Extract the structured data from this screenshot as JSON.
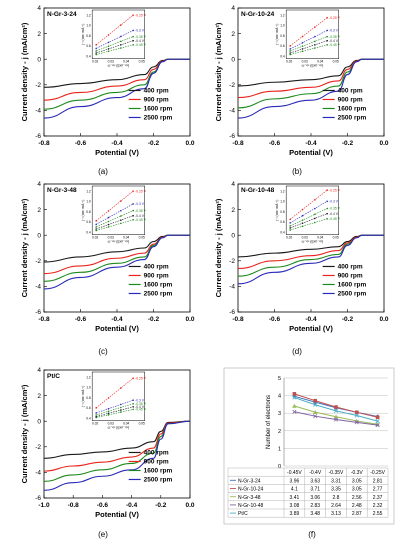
{
  "chart_data": [
    {
      "panel": "a",
      "type": "line",
      "sample_label": "N-Gr-3-24",
      "xlabel": "Potential (V)",
      "ylabel": "Current density - j (mA/cm²)",
      "xlim": [
        -0.8,
        0.0
      ],
      "ylim": [
        -6,
        4
      ],
      "xticks": [
        "-0.8",
        "-0.6",
        "-0.4",
        "-0.2",
        "0.0"
      ],
      "yticks": [
        "4",
        "2",
        "0",
        "-2",
        "-4",
        "-6"
      ],
      "legend": [
        "400   rpm",
        "900   rpm",
        "1600  rpm",
        "2500 rpm"
      ],
      "series": [
        {
          "name": "400   rpm",
          "x": [
            -0.8,
            -0.6,
            -0.4,
            -0.25,
            -0.2,
            -0.15,
            -0.12,
            0.0
          ],
          "y": [
            -2.2,
            -1.9,
            -1.6,
            -1.2,
            -0.6,
            -0.1,
            0.0,
            0.0
          ]
        },
        {
          "name": "900   rpm",
          "x": [
            -0.8,
            -0.6,
            -0.4,
            -0.25,
            -0.2,
            -0.15,
            -0.12,
            0.0
          ],
          "y": [
            -3.2,
            -2.6,
            -2.1,
            -1.6,
            -0.8,
            -0.15,
            0.0,
            0.0
          ]
        },
        {
          "name": "1600  rpm",
          "x": [
            -0.8,
            -0.6,
            -0.4,
            -0.25,
            -0.2,
            -0.15,
            -0.12,
            0.0
          ],
          "y": [
            -3.9,
            -3.2,
            -2.6,
            -2.0,
            -1.0,
            -0.2,
            0.0,
            0.0
          ]
        },
        {
          "name": "2500 rpm",
          "x": [
            -0.8,
            -0.6,
            -0.4,
            -0.25,
            -0.2,
            -0.15,
            -0.12,
            0.0
          ],
          "y": [
            -4.6,
            -3.7,
            -3.0,
            -2.3,
            -1.1,
            -0.2,
            0.0,
            0.0
          ]
        }
      ],
      "inset": {
        "xlabel": "ω⁻¹/² (rpm⁻¹/²)",
        "ylabel": "j⁻¹ (cm² mA⁻¹)",
        "xticks": [
          "0.02",
          "0.03",
          "0.04",
          "0.05"
        ],
        "yticks": [
          "0.4",
          "0.6",
          "0.8",
          "1.0",
          "1.2"
        ],
        "series": [
          {
            "name": "-0.25 V",
            "y": [
              0.62,
              1.2
            ]
          },
          {
            "name": "-0.3 V",
            "y": [
              0.55,
              0.9
            ]
          },
          {
            "name": "-0.35 V",
            "y": [
              0.5,
              0.78
            ]
          },
          {
            "name": "-0.4 V",
            "y": [
              0.46,
              0.7
            ]
          },
          {
            "name": "-0.45 V",
            "y": [
              0.43,
              0.62
            ]
          }
        ]
      },
      "caption": "(a)"
    },
    {
      "panel": "b",
      "type": "line",
      "sample_label": "N-Gr-10-24",
      "xlabel": "Potential (V)",
      "ylabel": "Current density - j (mA/cm²)",
      "xlim": [
        -0.8,
        0.0
      ],
      "ylim": [
        -6,
        4
      ],
      "xticks": [
        "-0.8",
        "-0.6",
        "-0.4",
        "-0.2",
        "0.0"
      ],
      "yticks": [
        "4",
        "2",
        "0",
        "-2",
        "-4",
        "-6"
      ],
      "legend": [
        "400   rpm",
        "900   rpm",
        "1600  rpm",
        "2500 rpm"
      ],
      "series": [
        {
          "name": "400   rpm",
          "x": [
            -0.8,
            -0.6,
            -0.4,
            -0.25,
            -0.2,
            -0.15,
            -0.12,
            0.0
          ],
          "y": [
            -2.1,
            -1.8,
            -1.6,
            -1.3,
            -0.6,
            -0.1,
            0.0,
            0.0
          ]
        },
        {
          "name": "900   rpm",
          "x": [
            -0.8,
            -0.6,
            -0.4,
            -0.25,
            -0.2,
            -0.15,
            -0.12,
            0.0
          ],
          "y": [
            -3.0,
            -2.5,
            -2.2,
            -1.7,
            -0.8,
            -0.15,
            0.0,
            0.0
          ]
        },
        {
          "name": "1600  rpm",
          "x": [
            -0.8,
            -0.6,
            -0.4,
            -0.25,
            -0.2,
            -0.15,
            -0.12,
            0.0
          ],
          "y": [
            -3.8,
            -3.1,
            -2.7,
            -2.1,
            -1.0,
            -0.2,
            0.0,
            0.0
          ]
        },
        {
          "name": "2500 rpm",
          "x": [
            -0.8,
            -0.6,
            -0.4,
            -0.25,
            -0.2,
            -0.15,
            -0.12,
            0.0
          ],
          "y": [
            -4.6,
            -3.7,
            -3.2,
            -2.5,
            -1.2,
            -0.2,
            0.0,
            0.0
          ]
        }
      ],
      "inset": {
        "xlabel": "ω⁻¹/² (rpm⁻¹/²)",
        "ylabel": "j⁻¹ (cm² mA⁻¹)",
        "xticks": [
          "0.02",
          "0.03",
          "0.04",
          "0.05"
        ],
        "yticks": [
          "0.4",
          "0.6",
          "0.8",
          "1.0",
          "1.2"
        ],
        "series": [
          {
            "name": "-0.25 V",
            "y": [
              0.6,
              1.15
            ]
          },
          {
            "name": "-0.3 V",
            "y": [
              0.54,
              0.9
            ]
          },
          {
            "name": "-0.35 V",
            "y": [
              0.5,
              0.78
            ]
          },
          {
            "name": "-0.4 V",
            "y": [
              0.46,
              0.7
            ]
          },
          {
            "name": "-0.45 V",
            "y": [
              0.43,
              0.62
            ]
          }
        ]
      },
      "caption": "(b)"
    },
    {
      "panel": "c",
      "type": "line",
      "sample_label": "N-Gr-3-48",
      "xlabel": "Potential (V)",
      "ylabel": "Current density - j (mA/cm²)",
      "xlim": [
        -0.8,
        0.0
      ],
      "ylim": [
        -6,
        4
      ],
      "xticks": [
        "-0.8",
        "-0.6",
        "-0.4",
        "-0.2",
        "0.0"
      ],
      "yticks": [
        "4",
        "2",
        "0",
        "-2",
        "-4",
        "-6"
      ],
      "legend": [
        "400   rpm",
        "900   rpm",
        "1600  rpm",
        "2500 rpm"
      ],
      "series": [
        {
          "name": "400   rpm",
          "x": [
            -0.8,
            -0.6,
            -0.4,
            -0.25,
            -0.2,
            -0.15,
            -0.12,
            0.0
          ],
          "y": [
            -2.1,
            -1.7,
            -1.3,
            -1.0,
            -0.5,
            -0.1,
            0.0,
            0.0
          ]
        },
        {
          "name": "900   rpm",
          "x": [
            -0.8,
            -0.6,
            -0.4,
            -0.25,
            -0.2,
            -0.15,
            -0.12,
            0.0
          ],
          "y": [
            -3.0,
            -2.4,
            -1.8,
            -1.4,
            -0.7,
            -0.15,
            0.0,
            0.0
          ]
        },
        {
          "name": "1600  rpm",
          "x": [
            -0.8,
            -0.6,
            -0.4,
            -0.25,
            -0.2,
            -0.15,
            -0.12,
            0.0
          ],
          "y": [
            -3.6,
            -2.9,
            -2.2,
            -1.7,
            -0.8,
            -0.2,
            0.0,
            0.0
          ]
        },
        {
          "name": "2500 rpm",
          "x": [
            -0.8,
            -0.6,
            -0.4,
            -0.25,
            -0.2,
            -0.15,
            -0.12,
            0.0
          ],
          "y": [
            -4.2,
            -3.3,
            -2.5,
            -1.9,
            -0.9,
            -0.2,
            0.0,
            0.0
          ]
        }
      ],
      "inset": {
        "xlabel": "ω⁻¹/² (rpm⁻¹/²)",
        "ylabel": "j⁻¹ (cm² mA⁻¹)",
        "xticks": [
          "0.02",
          "0.03",
          "0.04",
          "0.05"
        ],
        "yticks": [
          "0.4",
          "0.6",
          "0.8",
          "1.0",
          "1.2"
        ],
        "series": [
          {
            "name": "-0.25 V",
            "y": [
              0.62,
              1.2
            ]
          },
          {
            "name": "-0.3 V",
            "y": [
              0.55,
              0.95
            ]
          },
          {
            "name": "-0.35 V",
            "y": [
              0.5,
              0.82
            ]
          },
          {
            "name": "-0.4 V",
            "y": [
              0.46,
              0.72
            ]
          },
          {
            "name": "-0.45 V",
            "y": [
              0.43,
              0.64
            ]
          }
        ]
      },
      "caption": "(c)"
    },
    {
      "panel": "d",
      "type": "line",
      "sample_label": "N-Gr-10-48",
      "xlabel": "Potential (V)",
      "ylabel": "Current density - j (mA/cm²)",
      "xlim": [
        -0.8,
        0.0
      ],
      "ylim": [
        -6,
        4
      ],
      "xticks": [
        "-0.8",
        "-0.6",
        "-0.4",
        "-0.2",
        "0.0"
      ],
      "yticks": [
        "4",
        "2",
        "0",
        "-2",
        "-4",
        "-6"
      ],
      "legend": [
        "400   rpm",
        "900   rpm",
        "1600  rpm",
        "2500 rpm"
      ],
      "series": [
        {
          "name": "400   rpm",
          "x": [
            -0.8,
            -0.6,
            -0.4,
            -0.25,
            -0.2,
            -0.15,
            -0.12,
            0.0
          ],
          "y": [
            -1.7,
            -1.4,
            -1.1,
            -0.9,
            -0.5,
            -0.1,
            0.0,
            0.0
          ]
        },
        {
          "name": "900   rpm",
          "x": [
            -0.8,
            -0.6,
            -0.4,
            -0.25,
            -0.2,
            -0.15,
            -0.12,
            0.0
          ],
          "y": [
            -2.6,
            -2.0,
            -1.6,
            -1.2,
            -0.6,
            -0.15,
            0.0,
            0.0
          ]
        },
        {
          "name": "1600  rpm",
          "x": [
            -0.8,
            -0.6,
            -0.4,
            -0.25,
            -0.2,
            -0.15,
            -0.12,
            0.0
          ],
          "y": [
            -3.2,
            -2.5,
            -1.9,
            -1.5,
            -0.7,
            -0.2,
            0.0,
            0.0
          ]
        },
        {
          "name": "2500 rpm",
          "x": [
            -0.8,
            -0.6,
            -0.4,
            -0.25,
            -0.2,
            -0.15,
            -0.12,
            0.0
          ],
          "y": [
            -3.8,
            -2.9,
            -2.2,
            -1.7,
            -0.8,
            -0.2,
            0.0,
            0.0
          ]
        }
      ],
      "inset": {
        "xlabel": "ω⁻¹/² (rpm⁻¹/²)",
        "ylabel": "j⁻¹ (cm² mA⁻¹)",
        "xticks": [
          "0.02",
          "0.03",
          "0.04",
          "0.05"
        ],
        "yticks": [
          "0.4",
          "0.6",
          "0.8",
          "1.0",
          "1.2"
        ],
        "series": [
          {
            "name": "-0.25 V",
            "y": [
              0.65,
              1.22
            ]
          },
          {
            "name": "-0.3 V",
            "y": [
              0.58,
              1.0
            ]
          },
          {
            "name": "-0.35 V",
            "y": [
              0.52,
              0.86
            ]
          },
          {
            "name": "-0.4 V",
            "y": [
              0.48,
              0.76
            ]
          },
          {
            "name": "-0.45 V",
            "y": [
              0.44,
              0.66
            ]
          }
        ]
      },
      "caption": "(d)"
    },
    {
      "panel": "e",
      "type": "line",
      "sample_label": "Pt/C",
      "xlabel": "Potential (V)",
      "ylabel": "Current density - j (mA/cm²)",
      "xlim": [
        -1.0,
        0.0
      ],
      "ylim": [
        -6,
        4
      ],
      "xticks": [
        "-1.0",
        "-0.8",
        "-0.6",
        "-0.4",
        "-0.2",
        "0.0"
      ],
      "yticks": [
        "4",
        "2",
        "0",
        "-2",
        "-4",
        "-6"
      ],
      "legend": [
        "400   rpm",
        "900   rpm",
        "1600  rpm",
        "2500 rpm"
      ],
      "series": [
        {
          "name": "400   rpm",
          "x": [
            -1.0,
            -0.8,
            -0.6,
            -0.4,
            -0.25,
            -0.2,
            -0.15,
            0.0
          ],
          "y": [
            -2.9,
            -2.6,
            -2.4,
            -2.1,
            -1.6,
            -0.8,
            -0.1,
            0.0
          ]
        },
        {
          "name": "900   rpm",
          "x": [
            -1.0,
            -0.8,
            -0.6,
            -0.4,
            -0.25,
            -0.2,
            -0.15,
            0.0
          ],
          "y": [
            -3.9,
            -3.5,
            -3.2,
            -2.8,
            -2.1,
            -1.0,
            -0.15,
            0.0
          ]
        },
        {
          "name": "1600  rpm",
          "x": [
            -1.0,
            -0.8,
            -0.6,
            -0.4,
            -0.25,
            -0.2,
            -0.15,
            0.0
          ],
          "y": [
            -4.7,
            -4.2,
            -3.8,
            -3.3,
            -2.5,
            -1.2,
            -0.2,
            0.0
          ]
        },
        {
          "name": "2500 rpm",
          "x": [
            -1.0,
            -0.8,
            -0.6,
            -0.4,
            -0.25,
            -0.2,
            -0.15,
            0.0
          ],
          "y": [
            -5.4,
            -4.8,
            -4.3,
            -3.8,
            -2.9,
            -1.4,
            -0.2,
            0.0
          ]
        }
      ],
      "inset": {
        "xlabel": "ω⁻¹/² (rpm⁻¹/²)",
        "ylabel": "j⁻¹ (cm² mA⁻¹)",
        "xticks": [
          "0.02",
          "0.03",
          "0.04",
          "0.05"
        ],
        "yticks": [
          "0.4",
          "0.6",
          "0.8",
          "1.0",
          "1.2"
        ],
        "series": [
          {
            "name": "-0.25 V",
            "y": [
              0.6,
              1.18
            ]
          },
          {
            "name": "-0.3 V",
            "y": [
              0.5,
              0.75
            ]
          },
          {
            "name": "-0.35 V",
            "y": [
              0.46,
              0.68
            ]
          },
          {
            "name": "-0.4 V",
            "y": [
              0.43,
              0.62
            ]
          },
          {
            "name": "-0.45 V",
            "y": [
              0.41,
              0.57
            ]
          }
        ]
      },
      "caption": "(e)"
    },
    {
      "panel": "f",
      "type": "line",
      "ylabel": "Number of electrons",
      "ylim": [
        0,
        5
      ],
      "yticks": [
        "0",
        "1",
        "2",
        "3",
        "4",
        "5"
      ],
      "categories": [
        "-0.45V",
        "-0.4V",
        "-0.35V",
        "-0.3V",
        "-0.25V"
      ],
      "table_header": [
        "",
        "-0.45V",
        "-0.4V",
        "-0.35V",
        "-0.3V",
        "-0.25V"
      ],
      "series": [
        {
          "name": "N-Gr-3-24",
          "values": [
            3.96,
            3.63,
            3.31,
            3.05,
            2.81
          ],
          "cells": [
            "3.96",
            "3.63",
            "3.31",
            "3.05",
            "2.81"
          ],
          "color": "#4472c4",
          "marker": "diamond"
        },
        {
          "name": "N-Gr-10-24",
          "values": [
            4.1,
            3.71,
            3.35,
            3.05,
            2.77
          ],
          "cells": [
            "4.1",
            "3.71",
            "3.35",
            "3.05",
            "2.77"
          ],
          "color": "#c0504d",
          "marker": "square"
        },
        {
          "name": "N-Gr-3-48",
          "values": [
            3.41,
            3.06,
            2.8,
            2.56,
            2.37
          ],
          "cells": [
            "3.41",
            "3.06",
            "2.8",
            "2.56",
            "2.37"
          ],
          "color": "#9bbb59",
          "marker": "triangle"
        },
        {
          "name": "N-Gr-10-48",
          "values": [
            3.08,
            2.83,
            2.64,
            2.48,
            2.32
          ],
          "cells": [
            "3.08",
            "2.83",
            "2.64",
            "2.48",
            "2.32"
          ],
          "color": "#8064a2",
          "marker": "x"
        },
        {
          "name": "Pt/C",
          "values": [
            3.89,
            3.48,
            3.13,
            2.87,
            2.55
          ],
          "cells": [
            "3.89",
            "3.48",
            "3.13",
            "2.87",
            "2.55"
          ],
          "color": "#4bacc6",
          "marker": "x"
        }
      ],
      "caption": "(f)"
    }
  ],
  "colors": {
    "rpm_400": "#1a1a1a",
    "rpm_900": "#e8241c",
    "rpm_1600": "#1e8a1e",
    "rpm_2500": "#2a2ab8",
    "inset_1": "#e8241c",
    "inset_2": "#2a2ab8",
    "inset_3": "#1e8a1e",
    "inset_4": "#1a1a1a",
    "inset_5": "#1e8a1e"
  }
}
